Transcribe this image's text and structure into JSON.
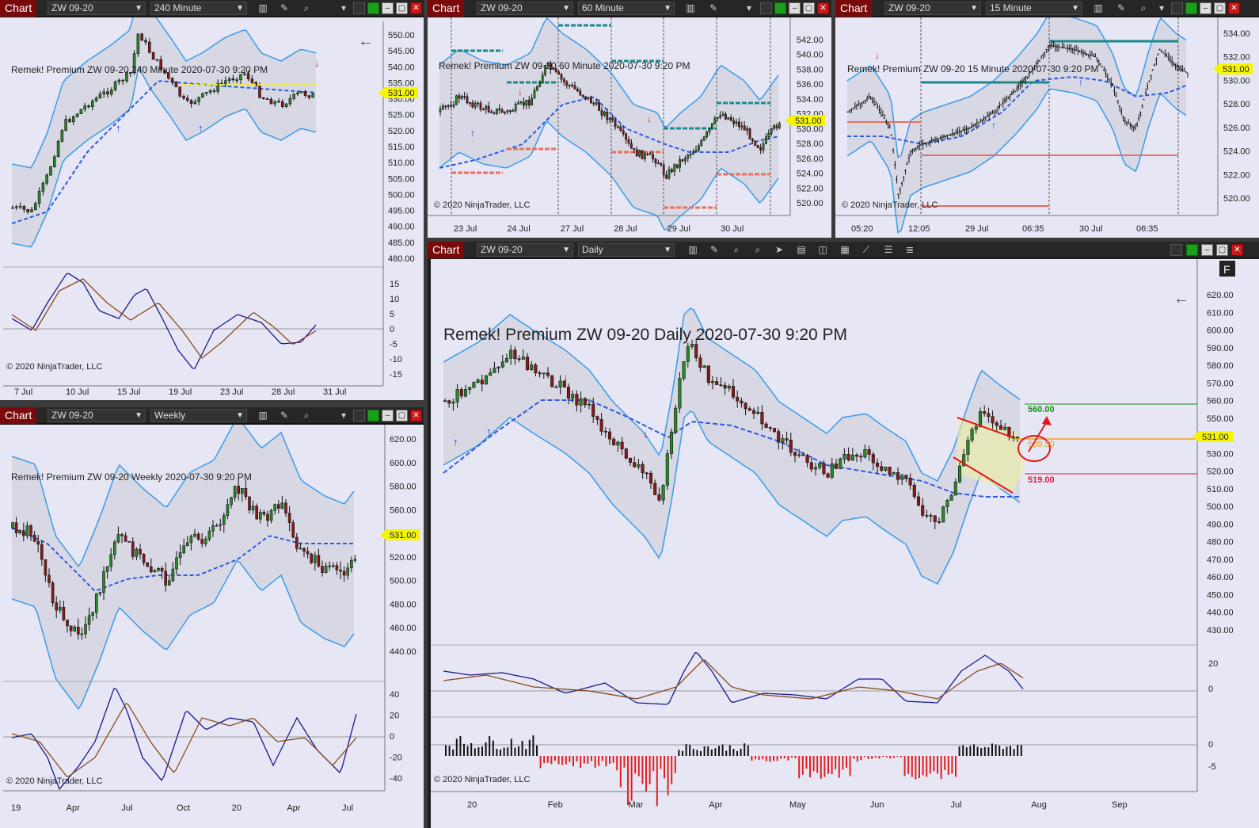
{
  "tab_label": "Chart",
  "instrument": "ZW 09-20",
  "copyright": "© 2020 NinjaTrader, LLC",
  "last_price": "531.00",
  "colors": {
    "bg": "#e6e6f5",
    "band": "#3a9be8",
    "mid_up": "#2e5be0",
    "mid_down": "#e0154f",
    "mid_flat": "#f0f020",
    "price_tag": "#f5f500",
    "osc_fast": "#1a1a8a",
    "osc_slow": "#8b4a1a",
    "hist_up": "#111111",
    "hist_down": "#e02020",
    "teal": "#1a8a8a",
    "salmon": "#e87060"
  },
  "windows": [
    {
      "id": "w240",
      "interval": "240 Minute",
      "title": "Remek!  Premium  ZW 09-20  240 Minute  2020-07-30 9:20 PM",
      "price_axis": [
        "550.00",
        "545.00",
        "540.00",
        "535.00",
        "530.00",
        "525.00",
        "520.00",
        "515.00",
        "510.00",
        "505.00",
        "500.00",
        "495.00",
        "490.00",
        "485.00",
        "480.00"
      ],
      "osc_axis": [
        "15",
        "10",
        "5",
        "0",
        "-5",
        "-10",
        "-15"
      ],
      "time_axis": [
        "7 Jul",
        "10 Jul",
        "15 Jul",
        "19 Jul",
        "23 Jul",
        "28 Jul",
        "31 Jul"
      ]
    },
    {
      "id": "w60",
      "interval": "60 Minute",
      "title": "Remek!  Premium  ZW 09-20  60 Minute  2020-07-30 9:20 PM",
      "price_axis": [
        "542.00",
        "540.00",
        "538.00",
        "536.00",
        "534.00",
        "532.00",
        "530.00",
        "528.00",
        "526.00",
        "524.00",
        "522.00",
        "520.00"
      ],
      "time_axis": [
        "23 Jul",
        "24 Jul",
        "27 Jul",
        "28 Jul",
        "29 Jul",
        "30 Jul"
      ]
    },
    {
      "id": "w15",
      "interval": "15 Minute",
      "title": "Remek!  Premium  ZW 09-20  15 Minute  2020-07-30 9:20 PM",
      "price_axis": [
        "534.00",
        "532.00",
        "530.00",
        "528.00",
        "526.00",
        "524.00",
        "522.00",
        "520.00"
      ],
      "time_axis": [
        "05:20",
        "12:05",
        "29 Jul",
        "06:35",
        "30 Jul",
        "06:35"
      ]
    },
    {
      "id": "wwk",
      "interval": "Weekly",
      "title": "Remek!  Premium  ZW 09-20  Weekly  2020-07-30 9:20 PM",
      "price_axis": [
        "620.00",
        "600.00",
        "580.00",
        "560.00",
        "540.00",
        "520.00",
        "500.00",
        "480.00",
        "460.00",
        "440.00"
      ],
      "osc_axis": [
        "40",
        "20",
        "0",
        "-20",
        "-40"
      ],
      "time_axis": [
        "19",
        "Apr",
        "Jul",
        "Oct",
        "20",
        "Apr",
        "Jul"
      ]
    },
    {
      "id": "wd",
      "interval": "Daily",
      "title": "Remek!  Premium  ZW 09-20  Daily  2020-07-30 9:20 PM",
      "price_axis": [
        "620.00",
        "610.00",
        "600.00",
        "590.00",
        "580.00",
        "570.00",
        "560.00",
        "550.00",
        "540.00",
        "530.00",
        "520.00",
        "510.00",
        "500.00",
        "490.00",
        "480.00",
        "470.00",
        "460.00",
        "450.00",
        "440.00",
        "430.00"
      ],
      "osc_axis": [
        "20",
        "0"
      ],
      "hist_axis": [
        "0",
        "-5"
      ],
      "time_axis": [
        "20",
        "Feb",
        "Mar",
        "Apr",
        "May",
        "Jun",
        "Jul",
        "Aug",
        "Sep"
      ],
      "levels": {
        "target": "560.00",
        "breakout": "539.50",
        "stop": "519.00"
      },
      "corner_letter": "F"
    }
  ]
}
